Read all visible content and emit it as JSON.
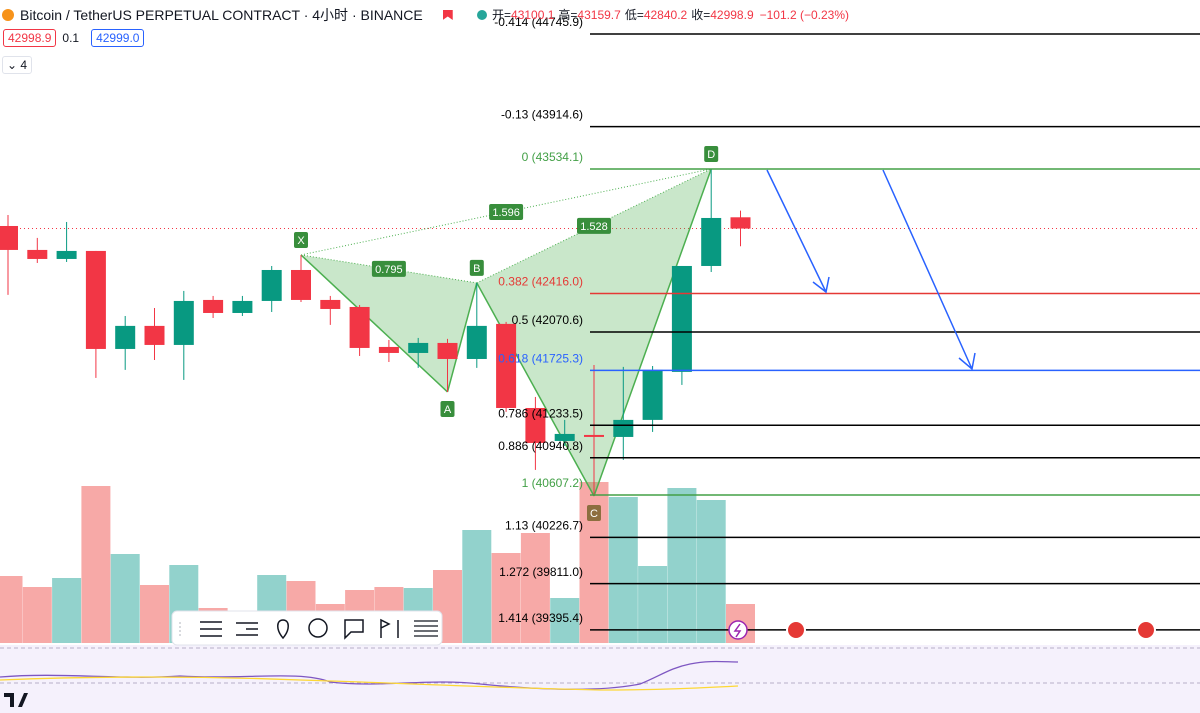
{
  "header": {
    "symbol": "Bitcoin / TetherUS PERPETUAL CONTRACT · 4小时 · BINANCE",
    "open_label": "开=",
    "high_label": "高=",
    "low_label": "低=",
    "close_label": "收=",
    "change": "−101.2 (−0.23%)",
    "spread": "0.1",
    "ask": "42999.0",
    "interval_menu": "4"
  },
  "chart_data": {
    "type": "candlestick",
    "ylim": [
      39260,
      45051
    ],
    "up_color": "#089981",
    "down_color": "#f23645",
    "up_volume_color": "#92d2cc",
    "down_volume_color": "#f7a9a7",
    "last_price_line": true,
    "candles": [
      {
        "open": 43022,
        "high": 43121,
        "low": 42403,
        "close": 42807,
        "volume": 67
      },
      {
        "open": 42807,
        "high": 42915,
        "low": 42690,
        "close": 42726,
        "volume": 56
      },
      {
        "open": 42726,
        "high": 43058,
        "low": 42699,
        "close": 42798,
        "volume": 65
      },
      {
        "open": 42798,
        "high": 42798,
        "low": 41658,
        "close": 41918,
        "volume": 157
      },
      {
        "open": 41918,
        "high": 42214,
        "low": 41730,
        "close": 42125,
        "volume": 89
      },
      {
        "open": 42125,
        "high": 42286,
        "low": 41819,
        "close": 41954,
        "volume": 58
      },
      {
        "open": 41954,
        "high": 42439,
        "low": 41640,
        "close": 42349,
        "volume": 78
      },
      {
        "open": 42358,
        "high": 42394,
        "low": 42196,
        "close": 42241,
        "volume": 35
      },
      {
        "open": 42241,
        "high": 42394,
        "low": 42214,
        "close": 42349,
        "volume": 28
      },
      {
        "open": 42349,
        "high": 42663,
        "low": 42250,
        "close": 42627,
        "volume": 68
      },
      {
        "open": 42627,
        "high": 42762,
        "low": 42340,
        "close": 42358,
        "volume": 62
      },
      {
        "open": 42358,
        "high": 42394,
        "low": 42134,
        "close": 42277,
        "volume": 39
      },
      {
        "open": 42295,
        "high": 42313,
        "low": 41855,
        "close": 41927,
        "volume": 53
      },
      {
        "open": 41936,
        "high": 41999,
        "low": 41801,
        "close": 41882,
        "volume": 56
      },
      {
        "open": 41882,
        "high": 42017,
        "low": 41748,
        "close": 41972,
        "volume": 55
      },
      {
        "open": 41972,
        "high": 42008,
        "low": 41532,
        "close": 41828,
        "volume": 73
      },
      {
        "open": 41828,
        "high": 42511,
        "low": 41748,
        "close": 42125,
        "volume": 113
      },
      {
        "open": 42143,
        "high": 42161,
        "low": 41353,
        "close": 41388,
        "volume": 90
      },
      {
        "open": 41388,
        "high": 41487,
        "low": 40832,
        "close": 41074,
        "volume": 110
      },
      {
        "open": 41092,
        "high": 41281,
        "low": 41047,
        "close": 41155,
        "volume": 45
      },
      {
        "open": 41146,
        "high": 41774,
        "low": 40598,
        "close": 41128,
        "volume": 161
      },
      {
        "open": 41128,
        "high": 41757,
        "low": 40922,
        "close": 41281,
        "volume": 146
      },
      {
        "open": 41281,
        "high": 41765,
        "low": 41173,
        "close": 41730,
        "volume": 77
      },
      {
        "open": 41712,
        "high": 42663,
        "low": 41595,
        "close": 42663,
        "volume": 155
      },
      {
        "open": 42663,
        "high": 43534,
        "low": 42609,
        "close": 43094,
        "volume": 143
      },
      {
        "open": 43100.1,
        "high": 43159.7,
        "low": 42840.2,
        "close": 42998.9,
        "volume": 39
      }
    ],
    "fib_levels": [
      {
        "value": 44745.9,
        "label": "-0.414 (44745.9)",
        "color": "#000000"
      },
      {
        "value": 43914.6,
        "label": "-0.13 (43914.6)",
        "color": "#000000"
      },
      {
        "value": 43534.1,
        "label": "0 (43534.1)",
        "color": "#43a047"
      },
      {
        "value": 42416.0,
        "label": "0.382 (42416.0)",
        "color": "#e53935"
      },
      {
        "value": 42070.6,
        "label": "0.5 (42070.6)",
        "color": "#000000"
      },
      {
        "value": 41725.3,
        "label": "0.618 (41725.3)",
        "color": "#2962ff"
      },
      {
        "value": 41233.5,
        "label": "0.786 (41233.5)",
        "color": "#000000"
      },
      {
        "value": 40940.8,
        "label": "0.886 (40940.8)",
        "color": "#000000"
      },
      {
        "value": 40607.2,
        "label": "1 (40607.2)",
        "color": "#43a047"
      },
      {
        "value": 40226.7,
        "label": "1.13 (40226.7)",
        "color": "#000000"
      },
      {
        "value": 39811.0,
        "label": "1.272 (39811.0)",
        "color": "#000000"
      },
      {
        "value": 39395.4,
        "label": "1.414 (39395.4)",
        "color": "#000000"
      }
    ],
    "pattern": {
      "color": "#4caf50",
      "points": [
        {
          "label": "X",
          "index": 10,
          "price": 42762
        },
        {
          "label": "A",
          "index": 15,
          "price": 41532
        },
        {
          "label": "B",
          "index": 16,
          "price": 42511
        },
        {
          "label": "C",
          "index": 20,
          "price": 40598
        },
        {
          "label": "D",
          "index": 24,
          "price": 43534
        }
      ],
      "ratios": [
        {
          "from": "X",
          "to": "B",
          "value": 0.795
        },
        {
          "from": "X",
          "to": "D",
          "value": 1.596
        },
        {
          "from": "B",
          "to": "D",
          "value": 1.528
        }
      ]
    }
  }
}
